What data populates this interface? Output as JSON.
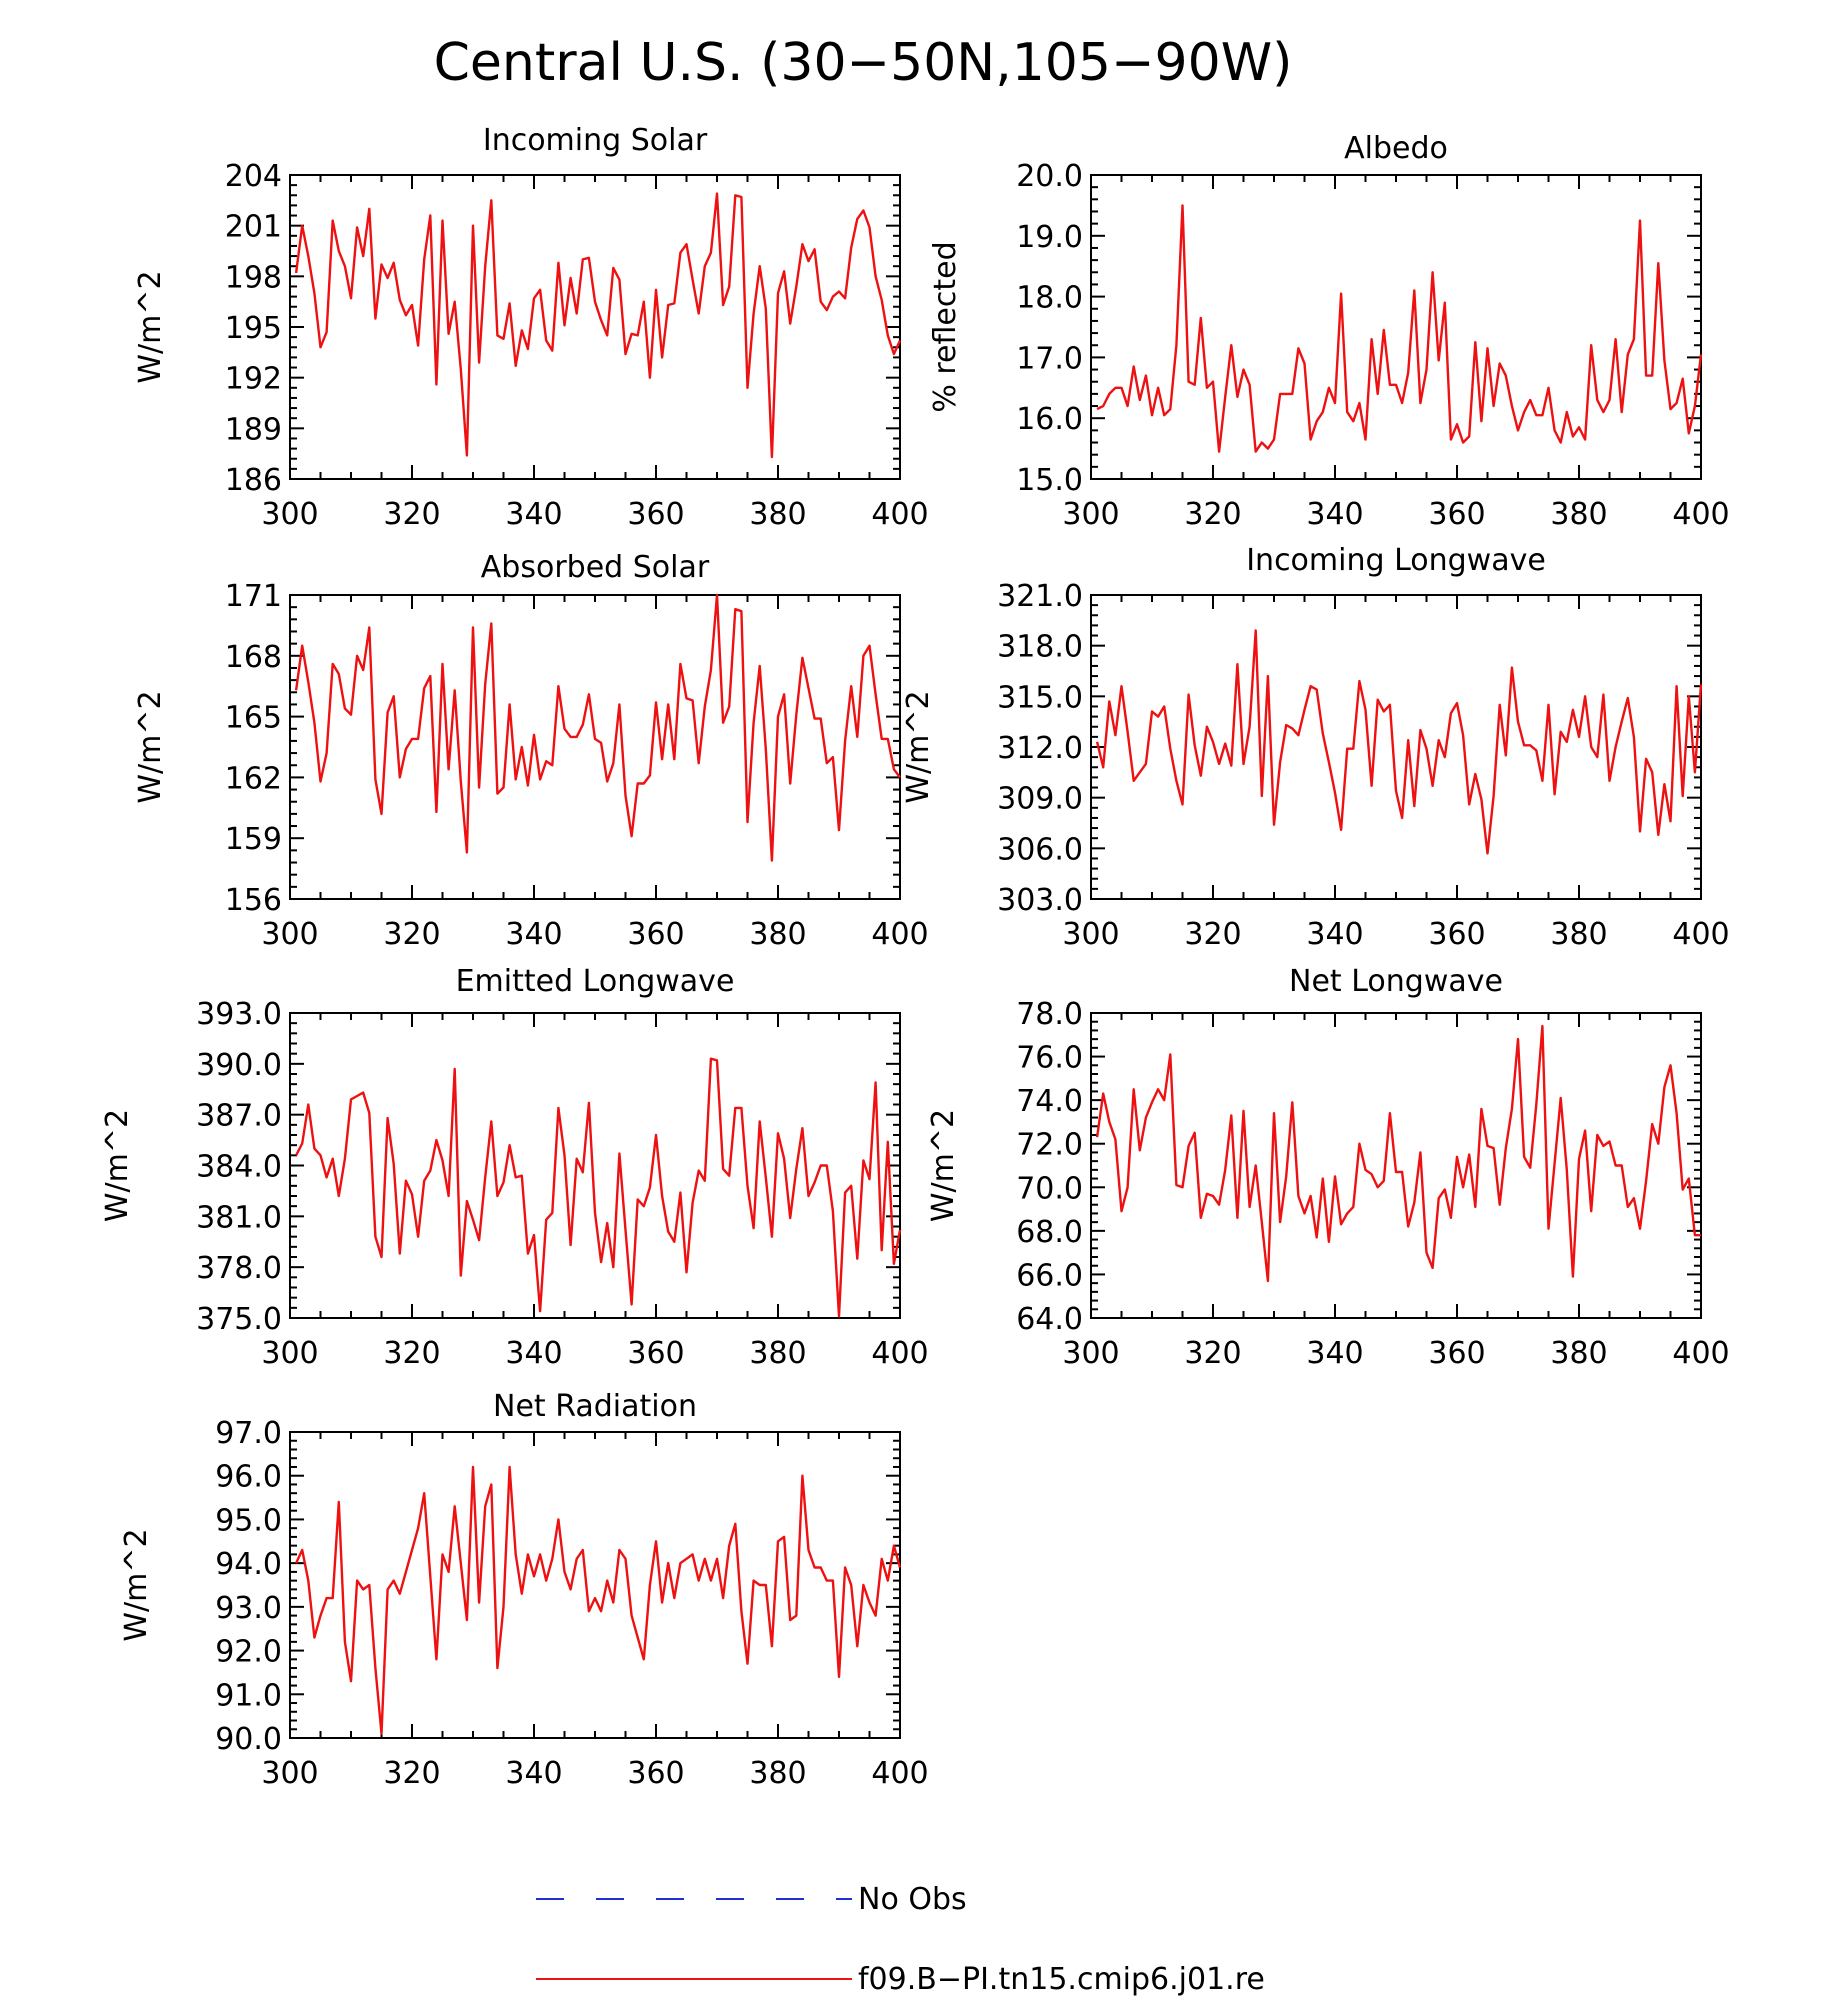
{
  "title": "Central U.S. (30−50N,105−90W)",
  "legend": {
    "obs_label": "No Obs",
    "obs_color": "#1f2fd0",
    "model_label": "f09.B−PI.tn15.cmip6.j01.re",
    "model_color": "#ee1111"
  },
  "chart_data": [
    {
      "type": "line",
      "title": "Incoming Solar",
      "ylabel": "W/m^2",
      "xlim": [
        300,
        400
      ],
      "ylim": [
        186,
        204
      ],
      "xticks": [
        "300",
        "320",
        "340",
        "360",
        "380",
        "400"
      ],
      "yticks": [
        "186",
        "189",
        "192",
        "195",
        "198",
        "201",
        "204"
      ],
      "series": [
        {
          "name": "f09.B−PI.tn15.cmip6.j01.re",
          "x_start": 301,
          "values": [
            198.2,
            201,
            199.2,
            197,
            193.8,
            194.7,
            201.3,
            199.5,
            198.6,
            196.7,
            200.9,
            199.2,
            202,
            195.5,
            198.7,
            197.9,
            198.8,
            196.6,
            195.7,
            196.3,
            193.9,
            199,
            201.6,
            191.6,
            201.3,
            194.6,
            196.5,
            192.5,
            187.4,
            201,
            192.9,
            198.6,
            202.5,
            194.5,
            194.3,
            196.4,
            192.7,
            194.8,
            193.7,
            196.7,
            197.2,
            194.2,
            193.6,
            198.8,
            195.1,
            197.9,
            195.8,
            199,
            199.1,
            196.5,
            195.4,
            194.5,
            198.5,
            197.8,
            193.4,
            194.6,
            194.5,
            196.5,
            192,
            197.2,
            193.2,
            196.3,
            196.4,
            199.4,
            199.9,
            197.8,
            195.8,
            198.6,
            199.4,
            202.9,
            196.3,
            197.4,
            202.8,
            202.7,
            191.4,
            195.8,
            198.6,
            196.1,
            187.3,
            197,
            198.3,
            195.2,
            197.4,
            199.9,
            198.9,
            199.6,
            196.5,
            196,
            196.8,
            197.1,
            196.7,
            199.7,
            201.4,
            201.9,
            200.9,
            198,
            196.6,
            194.5,
            193.4,
            194.2
          ]
        }
      ]
    },
    {
      "type": "line",
      "title": "Albedo",
      "ylabel": "% reflected",
      "xlim": [
        300,
        400
      ],
      "ylim": [
        15.0,
        20.0
      ],
      "xticks": [
        "300",
        "320",
        "340",
        "360",
        "380",
        "400"
      ],
      "yticks": [
        "15.0",
        "16.0",
        "17.0",
        "18.0",
        "19.0",
        "20.0"
      ],
      "series": [
        {
          "name": "f09.B−PI.tn15.cmip6.j01.re",
          "x_start": 301,
          "values": [
            16.15,
            16.2,
            16.4,
            16.5,
            16.5,
            16.2,
            16.85,
            16.3,
            16.7,
            16.05,
            16.5,
            16.05,
            16.15,
            17.2,
            19.5,
            16.6,
            16.55,
            17.65,
            16.5,
            16.6,
            15.45,
            16.35,
            17.2,
            16.35,
            16.8,
            16.55,
            15.45,
            15.6,
            15.5,
            15.65,
            16.4,
            16.4,
            16.4,
            17.15,
            16.9,
            15.65,
            15.95,
            16.1,
            16.5,
            16.25,
            18.05,
            16.1,
            15.95,
            16.25,
            15.65,
            17.3,
            16.4,
            17.45,
            16.55,
            16.55,
            16.25,
            16.75,
            18.1,
            16.25,
            16.8,
            18.4,
            16.95,
            17.9,
            15.65,
            15.9,
            15.6,
            15.7,
            17.25,
            15.95,
            17.15,
            16.2,
            16.9,
            16.7,
            16.2,
            15.8,
            16.1,
            16.3,
            16.05,
            16.05,
            16.5,
            15.8,
            15.6,
            16.1,
            15.7,
            15.85,
            15.65,
            17.2,
            16.3,
            16.1,
            16.3,
            17.3,
            16.1,
            17.05,
            17.3,
            19.25,
            16.7,
            16.7,
            18.55,
            16.95,
            16.15,
            16.25,
            16.65,
            15.75,
            16.2,
            17.05
          ]
        }
      ]
    },
    {
      "type": "line",
      "title": "Absorbed Solar",
      "ylabel": "W/m^2",
      "xlim": [
        300,
        400
      ],
      "ylim": [
        156,
        171
      ],
      "xticks": [
        "300",
        "320",
        "340",
        "360",
        "380",
        "400"
      ],
      "yticks": [
        "156",
        "159",
        "162",
        "165",
        "168",
        "171"
      ],
      "series": [
        {
          "name": "f09.B−PI.tn15.cmip6.j01.re",
          "x_start": 301,
          "values": [
            166.3,
            168.5,
            166.7,
            164.7,
            161.8,
            163.2,
            167.6,
            167.1,
            165.4,
            165.1,
            168,
            167.3,
            169.4,
            161.9,
            160.2,
            165.2,
            166,
            162,
            163.4,
            163.9,
            163.9,
            166.4,
            167,
            160.3,
            167.6,
            162.4,
            166.3,
            161.8,
            158.3,
            169.4,
            161.5,
            166.6,
            169.6,
            161.2,
            161.5,
            165.6,
            161.9,
            163.5,
            161.6,
            164.1,
            161.9,
            162.8,
            162.6,
            166.5,
            164.4,
            164,
            164,
            164.6,
            166.1,
            163.9,
            163.7,
            161.8,
            162.7,
            165.6,
            161.1,
            159.1,
            161.7,
            161.7,
            162.1,
            165.7,
            162.9,
            165.6,
            162.9,
            167.6,
            165.9,
            165.8,
            162.7,
            165.5,
            167.3,
            171,
            164.7,
            165.5,
            170.3,
            170.2,
            159.8,
            164.7,
            167.5,
            163.4,
            157.9,
            165,
            166.1,
            161.7,
            165.1,
            167.9,
            166.4,
            164.9,
            164.9,
            162.7,
            163,
            159.4,
            163.8,
            166.5,
            164,
            168,
            168.5,
            166.1,
            163.9,
            163.9,
            162.4,
            162
          ]
        }
      ]
    },
    {
      "type": "line",
      "title": "Incoming Longwave",
      "ylabel": "W/m^2",
      "xlim": [
        300,
        400
      ],
      "ylim": [
        303.0,
        321.0
      ],
      "xticks": [
        "300",
        "320",
        "340",
        "360",
        "380",
        "400"
      ],
      "yticks": [
        "303.0",
        "306.0",
        "309.0",
        "312.0",
        "315.0",
        "318.0",
        "321.0"
      ],
      "series": [
        {
          "name": "f09.B−PI.tn15.cmip6.j01.re",
          "x_start": 301,
          "values": [
            312.3,
            310.8,
            314.7,
            312.7,
            315.6,
            312.9,
            310,
            310.5,
            311,
            314.1,
            313.8,
            314.4,
            311.9,
            310,
            308.6,
            315.1,
            312.1,
            310.3,
            313.2,
            312.3,
            311,
            312.2,
            310.9,
            316.9,
            311,
            313.2,
            318.9,
            309.1,
            316.2,
            307.4,
            311.1,
            313.3,
            313.1,
            312.7,
            314.2,
            315.6,
            315.4,
            312.8,
            311.1,
            309.3,
            307.1,
            311.9,
            311.9,
            315.9,
            314.2,
            309.7,
            314.8,
            314.1,
            314.5,
            309.4,
            307.8,
            312.4,
            308.5,
            313,
            311.9,
            309.7,
            312.4,
            311.4,
            314,
            314.6,
            312.7,
            308.6,
            310.4,
            308.9,
            305.7,
            309.1,
            314.5,
            311.5,
            316.7,
            313.5,
            312.1,
            312.1,
            311.8,
            310,
            314.5,
            309.2,
            312.9,
            312.3,
            314.2,
            312.6,
            315,
            312,
            311.4,
            315.1,
            310,
            312,
            313.5,
            314.9,
            312.6,
            307,
            311.3,
            310.5,
            306.8,
            309.8,
            307.6,
            315.6,
            309.1,
            315,
            310.5,
            315.7
          ]
        }
      ]
    },
    {
      "type": "line",
      "title": "Emitted Longwave",
      "ylabel": "W/m^2",
      "xlim": [
        300,
        400
      ],
      "ylim": [
        375.0,
        393.0
      ],
      "xticks": [
        "300",
        "320",
        "340",
        "360",
        "380",
        "400"
      ],
      "yticks": [
        "375.0",
        "378.0",
        "381.0",
        "384.0",
        "387.0",
        "390.0",
        "393.0"
      ],
      "series": [
        {
          "name": "f09.B−PI.tn15.cmip6.j01.re",
          "x_start": 301,
          "values": [
            384.6,
            385.3,
            387.6,
            385,
            384.6,
            383.3,
            384.4,
            382.2,
            384.4,
            387.9,
            388.1,
            388.3,
            387.1,
            379.8,
            378.6,
            386.8,
            384.1,
            378.8,
            383.1,
            382.3,
            379.8,
            383.1,
            383.7,
            385.5,
            384.3,
            382.2,
            389.7,
            377.5,
            381.9,
            380.8,
            379.6,
            383.3,
            386.6,
            382.2,
            383,
            385.2,
            383.3,
            383.4,
            378.8,
            379.9,
            375.4,
            380.8,
            381.2,
            387.4,
            384.6,
            379.3,
            384.4,
            383.6,
            387.7,
            381.2,
            378.3,
            380.6,
            378,
            384.7,
            380.2,
            375.8,
            382,
            381.6,
            382.7,
            385.8,
            382.2,
            380.1,
            379.5,
            382.4,
            377.7,
            381.8,
            383.7,
            383.1,
            390.3,
            390.2,
            383.8,
            383.4,
            387.4,
            387.4,
            382.8,
            380.3,
            386.6,
            383.3,
            379.8,
            385.9,
            384.4,
            380.9,
            383.8,
            386.2,
            382.2,
            383,
            384,
            384,
            381.3,
            375.1,
            382.4,
            382.8,
            378.5,
            384.3,
            383.2,
            388.9,
            379,
            385.4,
            378.2,
            380.2
          ]
        }
      ]
    },
    {
      "type": "line",
      "title": "Net Longwave",
      "ylabel": "W/m^2",
      "xlim": [
        300,
        400
      ],
      "ylim": [
        64.0,
        78.0
      ],
      "xticks": [
        "300",
        "320",
        "340",
        "360",
        "380",
        "400"
      ],
      "yticks": [
        "64.0",
        "66.0",
        "68.0",
        "70.0",
        "72.0",
        "74.0",
        "76.0",
        "78.0"
      ],
      "series": [
        {
          "name": "f09.B−PI.tn15.cmip6.j01.re",
          "x_start": 301,
          "values": [
            72.3,
            74.3,
            73,
            72.2,
            68.9,
            70,
            74.5,
            71.7,
            73.2,
            73.9,
            74.5,
            74,
            76.1,
            70.1,
            70,
            71.9,
            72.5,
            68.6,
            69.7,
            69.6,
            69.2,
            70.8,
            73.3,
            68.6,
            73.5,
            69.1,
            71,
            68.4,
            65.7,
            73.4,
            68.4,
            70.5,
            73.9,
            69.6,
            68.8,
            69.6,
            67.7,
            70.4,
            67.5,
            70.5,
            68.3,
            68.8,
            69.1,
            72,
            70.8,
            70.6,
            70,
            70.3,
            73.4,
            70.7,
            70.7,
            68.2,
            69.3,
            71.6,
            67,
            66.3,
            69.5,
            69.9,
            68.6,
            71.4,
            70,
            71.5,
            69.1,
            73.6,
            71.9,
            71.8,
            69.2,
            71.8,
            73.6,
            76.8,
            71.4,
            70.9,
            73.8,
            77.4,
            68.1,
            71.1,
            74.1,
            70.8,
            65.9,
            71.3,
            72.6,
            68.9,
            72.4,
            71.9,
            72.1,
            71,
            71,
            69.1,
            69.5,
            68.1,
            70.3,
            72.9,
            72,
            74.6,
            75.6,
            73.4,
            69.9,
            70.4,
            67.8,
            67.8
          ]
        }
      ]
    },
    {
      "type": "line",
      "title": "Net Radiation",
      "ylabel": "W/m^2",
      "xlim": [
        300,
        400
      ],
      "ylim": [
        90.0,
        97.0
      ],
      "xticks": [
        "300",
        "320",
        "340",
        "360",
        "380",
        "400"
      ],
      "yticks": [
        "90.0",
        "91.0",
        "92.0",
        "93.0",
        "94.0",
        "95.0",
        "96.0",
        "97.0"
      ],
      "series": [
        {
          "name": "f09.B−PI.tn15.cmip6.j01.re",
          "x_start": 301,
          "values": [
            94,
            94.3,
            93.6,
            92.3,
            92.8,
            93.2,
            93.2,
            95.4,
            92.2,
            91.3,
            93.6,
            93.4,
            93.5,
            91.6,
            90.1,
            93.4,
            93.6,
            93.3,
            93.8,
            94.3,
            94.8,
            95.6,
            93.7,
            91.8,
            94.2,
            93.8,
            95.3,
            94,
            92.7,
            96.2,
            93.1,
            95.3,
            95.8,
            91.6,
            93,
            96.2,
            94.2,
            93.3,
            94.2,
            93.7,
            94.2,
            93.6,
            94.1,
            95,
            93.8,
            93.4,
            94.1,
            94.3,
            92.9,
            93.2,
            92.9,
            93.6,
            93.1,
            94.3,
            94.1,
            92.8,
            92.3,
            91.8,
            93.5,
            94.5,
            93.1,
            94,
            93.2,
            94,
            94.1,
            94.2,
            93.6,
            94.1,
            93.6,
            94.1,
            93.2,
            94.4,
            94.9,
            92.9,
            91.7,
            93.6,
            93.5,
            93.5,
            92.1,
            94.5,
            94.6,
            92.7,
            92.8,
            96,
            94.3,
            93.9,
            93.9,
            93.6,
            93.6,
            91.4,
            93.9,
            93.5,
            92.1,
            93.5,
            93.1,
            92.8,
            94.1,
            93.6,
            94.4,
            93.9
          ]
        }
      ]
    }
  ]
}
